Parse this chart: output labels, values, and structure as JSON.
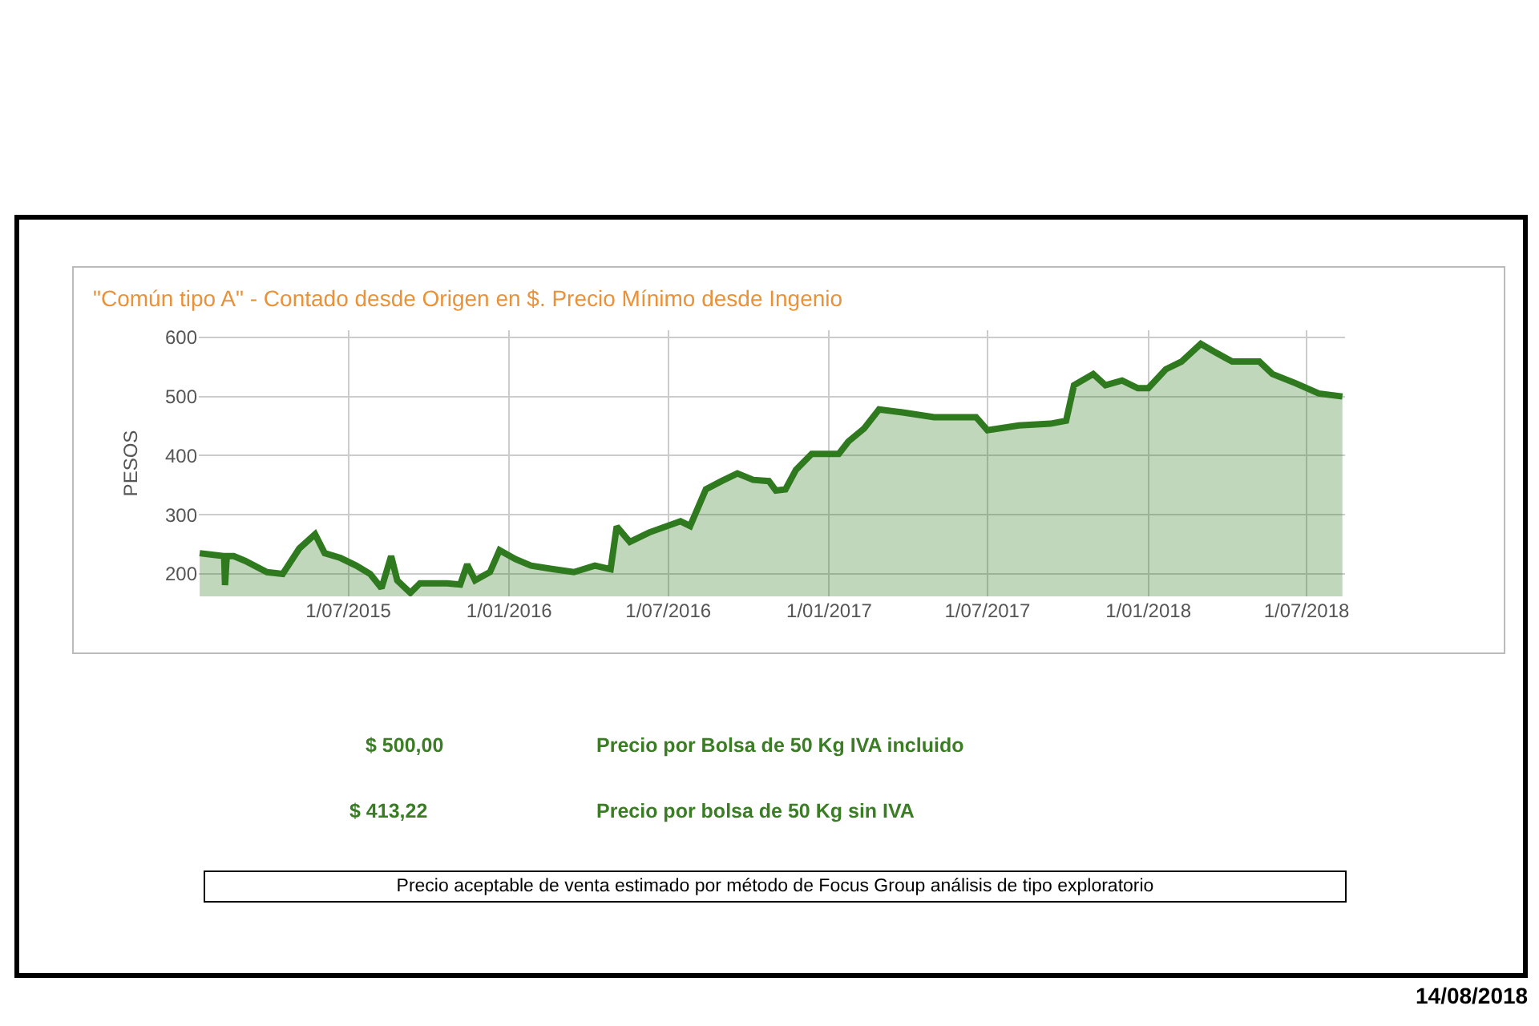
{
  "chart_data": {
    "type": "area",
    "title": "\"Común tipo A\" - Contado desde Origen en $. Precio Mínimo desde Ingenio",
    "ylabel": "PESOS",
    "x": [
      "2015-01-12",
      "2015-02-09",
      "2015-02-10",
      "2015-02-12",
      "2015-02-20",
      "2015-03-05",
      "2015-03-30",
      "2015-04-17",
      "2015-05-06",
      "2015-05-24",
      "2015-06-04",
      "2015-06-22",
      "2015-07-10",
      "2015-07-26",
      "2015-08-08",
      "2015-08-19",
      "2015-08-26",
      "2015-09-10",
      "2015-09-21",
      "2015-10-22",
      "2015-11-06",
      "2015-11-14",
      "2015-11-23",
      "2015-12-10",
      "2015-12-21",
      "2016-01-08",
      "2016-01-26",
      "2016-02-20",
      "2016-03-15",
      "2016-04-08",
      "2016-04-26",
      "2016-05-03",
      "2016-05-18",
      "2016-06-09",
      "2016-07-15",
      "2016-07-26",
      "2016-08-13",
      "2016-08-31",
      "2016-09-18",
      "2016-10-06",
      "2016-10-24",
      "2016-11-01",
      "2016-11-12",
      "2016-11-24",
      "2016-12-12",
      "2017-01-12",
      "2017-01-23",
      "2017-02-10",
      "2017-02-27",
      "2017-03-26",
      "2017-05-01",
      "2017-06-18",
      "2017-07-01",
      "2017-08-06",
      "2017-09-11",
      "2017-09-29",
      "2017-10-08",
      "2017-10-30",
      "2017-11-13",
      "2017-12-02",
      "2017-12-20",
      "2018-01-01",
      "2018-01-21",
      "2018-02-08",
      "2018-03-02",
      "2018-03-17",
      "2018-04-07",
      "2018-05-08",
      "2018-05-23",
      "2018-06-19",
      "2018-07-15",
      "2018-08-11"
    ],
    "series": [
      {
        "color": "#2f7a1f",
        "values": [
          235,
          230,
          181,
          230,
          230,
          222,
          203,
          200,
          243,
          267,
          235,
          227,
          214,
          200,
          176,
          230,
          189,
          168,
          184,
          184,
          182,
          216,
          189,
          203,
          240,
          225,
          214,
          208,
          203,
          214,
          208,
          280,
          254,
          270,
          289,
          281,
          343,
          357,
          370,
          359,
          357,
          341,
          343,
          376,
          403,
          403,
          424,
          446,
          478,
          473,
          465,
          465,
          443,
          451,
          454,
          459,
          519,
          538,
          519,
          527,
          514,
          514,
          546,
          559,
          589,
          576,
          559,
          559,
          538,
          522,
          505,
          500
        ]
      }
    ],
    "xlim": [
      "2015-01-11",
      "2018-08-14"
    ],
    "xticks": [
      {
        "value": "2015-07-01",
        "label": "1/07/2015"
      },
      {
        "value": "2016-01-01",
        "label": "1/01/2016"
      },
      {
        "value": "2016-07-01",
        "label": "1/07/2016"
      },
      {
        "value": "2017-01-01",
        "label": "1/01/2017"
      },
      {
        "value": "2017-07-01",
        "label": "1/07/2017"
      },
      {
        "value": "2018-01-01",
        "label": "1/01/2018"
      },
      {
        "value": "2018-07-01",
        "label": "1/07/2018"
      }
    ],
    "ylim": [
      162,
      612
    ],
    "yticks": [
      200,
      300,
      400,
      500,
      600
    ],
    "grid": true,
    "annotations": [
      "$ 500,00",
      "Precio por Bolsa de 50 Kg IVA incluido",
      "$ 413,22",
      "Precio por bolsa de 50 Kg sin IVA",
      "Precio aceptable de venta estimado por método de Focus Group análisis de tipo exploratorio",
      "14/08/2018"
    ]
  }
}
